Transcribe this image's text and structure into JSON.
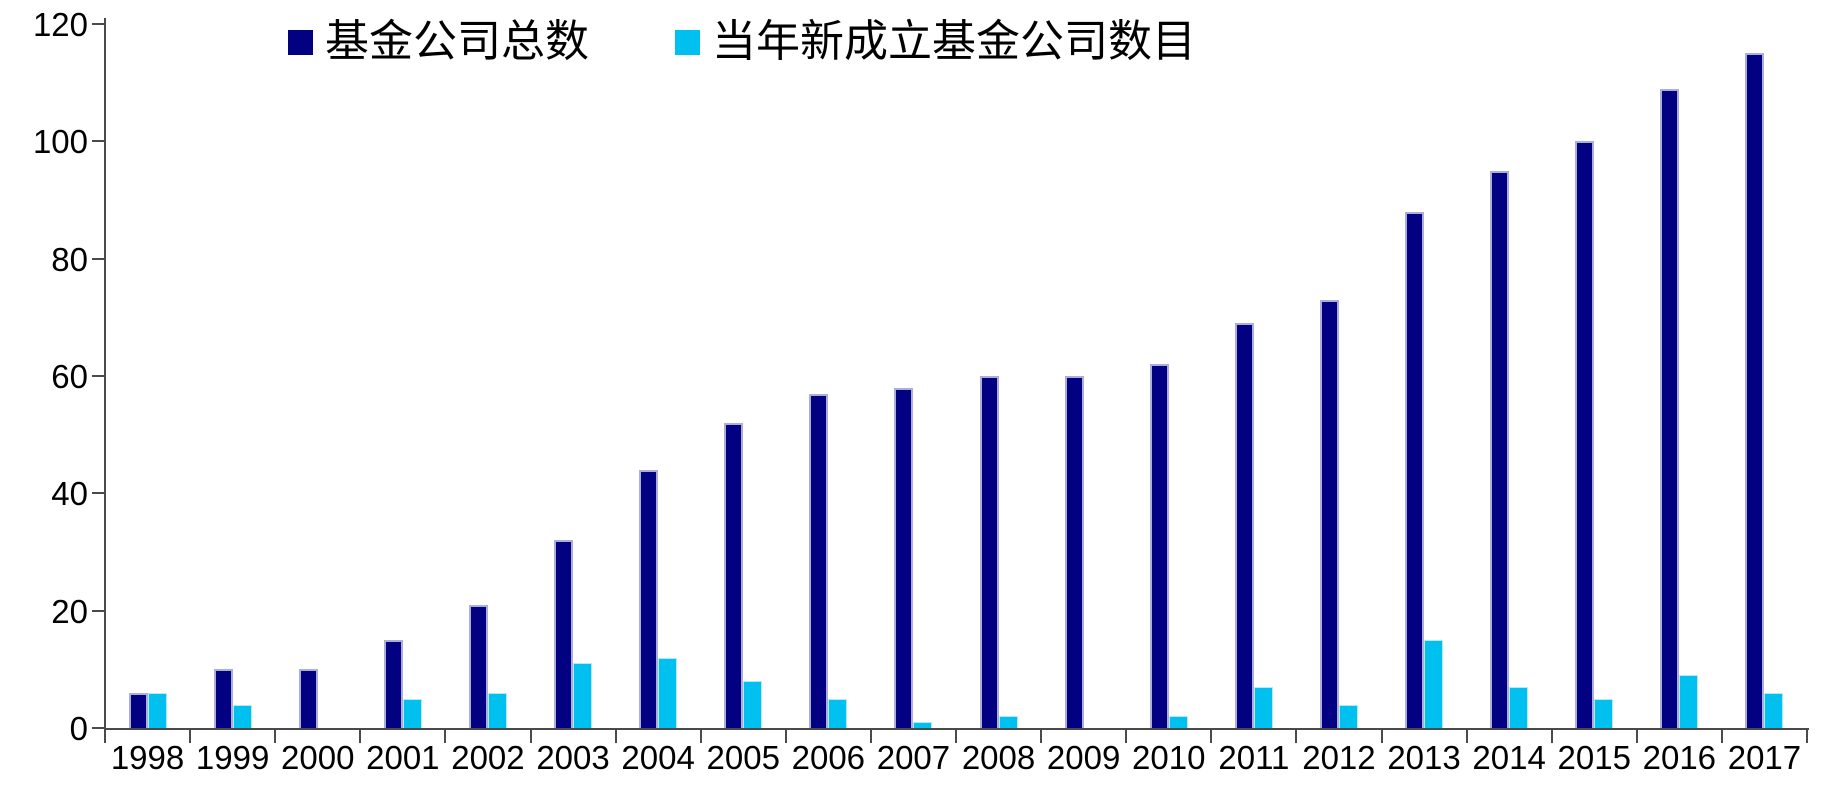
{
  "chart_data": {
    "type": "bar",
    "title": "",
    "categories": [
      "1998",
      "1999",
      "2000",
      "2001",
      "2002",
      "2003",
      "2004",
      "2005",
      "2006",
      "2007",
      "2008",
      "2009",
      "2010",
      "2011",
      "2012",
      "2013",
      "2014",
      "2015",
      "2016",
      "2017"
    ],
    "series": [
      {
        "name": "基金公司总数",
        "color": "#010181",
        "values": [
          6,
          10,
          10,
          15,
          21,
          32,
          44,
          52,
          57,
          58,
          60,
          60,
          62,
          69,
          73,
          88,
          95,
          100,
          109,
          115
        ]
      },
      {
        "name": "当年新成立基金公司数目",
        "color": "#00c0f0",
        "values": [
          6,
          4,
          0,
          5,
          6,
          11,
          12,
          8,
          5,
          1,
          2,
          0,
          2,
          7,
          4,
          15,
          7,
          5,
          9,
          6
        ]
      }
    ],
    "xlabel": "",
    "ylabel": "",
    "ylim": [
      0,
      120
    ],
    "yticks": [
      0,
      20,
      40,
      60,
      80,
      100,
      120
    ],
    "grid": false,
    "legend_position": "top",
    "axis_color": "#4a4a4a",
    "text_color": "#000000"
  }
}
